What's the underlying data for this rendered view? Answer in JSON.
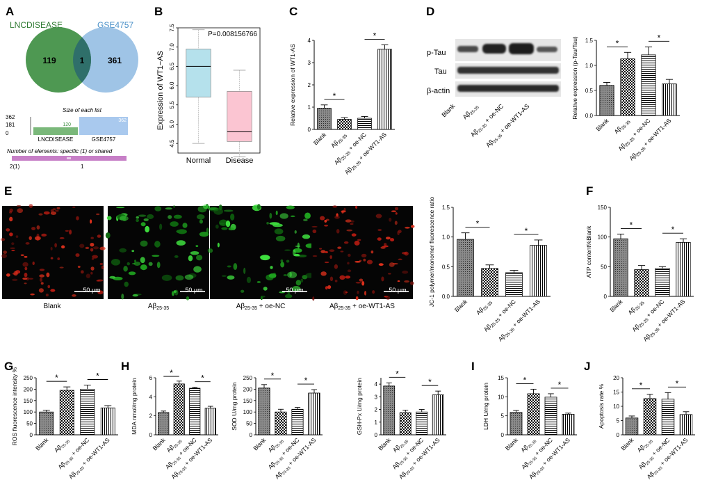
{
  "panel_letters": [
    "A",
    "B",
    "C",
    "D",
    "E",
    "F",
    "G",
    "H",
    "I",
    "J"
  ],
  "venn": {
    "left_label": "LNCDISEASE",
    "right_label": "GSE4757",
    "left_only": "119",
    "shared": "1",
    "right_only": "361",
    "left_color": "#3f8f43",
    "right_color": "#9fc4e6"
  },
  "list_size": {
    "title": "Size of each list",
    "ticks": [
      "362",
      "181",
      "0"
    ],
    "bars": [
      {
        "label": "LNCDISEASE",
        "value": "120",
        "color": "#7ab87a"
      },
      {
        "label": "GSE4757",
        "value": "362",
        "color": "#a9c9ee"
      }
    ]
  },
  "shared_elements": {
    "title": "Number of elements: specific (1) or shared",
    "ticks": [
      "2(1)",
      "1"
    ],
    "bar_color": "#c77fc7"
  },
  "panel_e": {
    "micrographs": [
      {
        "label": "Blank",
        "scale": "50 µm",
        "channel": "red"
      },
      {
        "label": "Aβ25-35",
        "scale": "50 µm",
        "channel": "green"
      },
      {
        "label": "Aβ25-35 + oe-NC",
        "scale": "50 µm",
        "channel": "green"
      },
      {
        "label": "Aβ25-35 + oe-WT1-AS",
        "scale": "50 µm",
        "channel": "red"
      }
    ]
  },
  "western_blot": {
    "rows": [
      "p-Tau",
      "Tau",
      "β-actin"
    ]
  },
  "chart_data": [
    {
      "id": "B",
      "type": "boxplot",
      "ylabel": "Expression of WT1−AS",
      "ylim": [
        4.25,
        7.5
      ],
      "yticks": [
        4.5,
        5.0,
        5.5,
        6.0,
        6.5,
        7.0,
        7.5
      ],
      "annotation": "P=0.008156766",
      "categories": [
        "Normal",
        "Disease"
      ],
      "boxes": [
        {
          "name": "Normal",
          "min": 4.5,
          "q1": 5.7,
          "median": 6.5,
          "q3": 6.95,
          "max": 7.45,
          "color": "#b5e1ec"
        },
        {
          "name": "Disease",
          "min": 4.15,
          "q1": 4.55,
          "median": 4.8,
          "q3": 5.85,
          "max": 6.4,
          "color": "#fbc5d2"
        }
      ]
    },
    {
      "id": "C",
      "type": "bar",
      "ylabel": "Relative expression of WT1-AS",
      "ylim": [
        0,
        4
      ],
      "yticks": [
        0,
        1,
        2,
        3,
        4
      ],
      "categories": [
        "Blank",
        "Aβ25-35",
        "Aβ25-35 + oe-NC",
        "Aβ25-35 + oe-WT1-AS"
      ],
      "values": [
        0.95,
        0.45,
        0.5,
        3.6
      ],
      "errors": [
        0.15,
        0.08,
        0.08,
        0.2
      ],
      "significance": [
        [
          0,
          1
        ],
        [
          2,
          3
        ]
      ]
    },
    {
      "id": "D",
      "type": "bar",
      "ylabel": "Relative expression (p-Tau/Tau)",
      "ylim": [
        0,
        1.5
      ],
      "yticks": [
        0.0,
        0.5,
        1.0,
        1.5
      ],
      "categories": [
        "Blank",
        "Aβ25-35",
        "Aβ25-35 + oe-NC",
        "Aβ25-35 + oe-WT1-AS"
      ],
      "values": [
        0.6,
        1.13,
        1.21,
        0.63
      ],
      "errors": [
        0.06,
        0.13,
        0.16,
        0.09
      ],
      "significance": [
        [
          0,
          1
        ],
        [
          2,
          3
        ]
      ]
    },
    {
      "id": "E",
      "type": "bar",
      "ylabel": "JC-1 polymer/monomer fluorescence ratio",
      "ylim": [
        0,
        1.5
      ],
      "yticks": [
        0.0,
        0.5,
        1.0,
        1.5
      ],
      "categories": [
        "Blank",
        "Aβ25-35",
        "Aβ25-35 + oe-NC",
        "Aβ25-35 + oe-WT1-AS"
      ],
      "values": [
        0.96,
        0.47,
        0.4,
        0.86
      ],
      "errors": [
        0.11,
        0.06,
        0.04,
        0.09
      ],
      "significance": [
        [
          0,
          1
        ],
        [
          2,
          3
        ]
      ]
    },
    {
      "id": "F",
      "type": "bar",
      "ylabel": "ATP content%Blank",
      "ylim": [
        0,
        150
      ],
      "yticks": [
        0,
        50,
        100,
        150
      ],
      "categories": [
        "Blank",
        "Aβ25-35",
        "Aβ25-35 + oe-NC",
        "Aβ25-35 + oe-WT1-AS"
      ],
      "values": [
        97,
        45,
        47,
        91
      ],
      "errors": [
        8,
        7,
        3,
        6
      ],
      "significance": [
        [
          0,
          1
        ],
        [
          2,
          3
        ]
      ]
    },
    {
      "id": "G",
      "type": "bar",
      "ylabel": "ROS fluorescence intensity %",
      "ylim": [
        0,
        250
      ],
      "yticks": [
        0,
        50,
        100,
        150,
        200,
        250
      ],
      "categories": [
        "Blank",
        "Aβ25-35",
        "Aβ25-35 + oe-NC",
        "Aβ25-35 + oe-WT1-AS"
      ],
      "values": [
        100,
        195,
        200,
        118
      ],
      "errors": [
        8,
        15,
        18,
        10
      ],
      "significance": [
        [
          0,
          1
        ],
        [
          2,
          3
        ]
      ]
    },
    {
      "id": "H1",
      "type": "bar",
      "ylabel": "MDA nmol/mg protein",
      "ylim": [
        0,
        6
      ],
      "yticks": [
        0,
        2,
        4,
        6
      ],
      "categories": [
        "Blank",
        "Aβ25-35",
        "Aβ25-35 + oe-NC",
        "Aβ25-35 + oe-WT1-AS"
      ],
      "values": [
        2.35,
        5.35,
        4.9,
        2.8
      ],
      "errors": [
        0.15,
        0.3,
        0.1,
        0.2
      ],
      "significance": [
        [
          0,
          1
        ],
        [
          2,
          3
        ]
      ]
    },
    {
      "id": "H2",
      "type": "bar",
      "ylabel": "SOD U/mg protein",
      "ylim": [
        0,
        250
      ],
      "yticks": [
        0,
        50,
        100,
        150,
        200,
        250
      ],
      "categories": [
        "Blank",
        "Aβ25-35",
        "Aβ25-35 + oe-NC",
        "Aβ25-35 + oe-WT1-AS"
      ],
      "values": [
        205,
        100,
        112,
        183
      ],
      "errors": [
        15,
        12,
        8,
        15
      ],
      "significance": [
        [
          0,
          1
        ],
        [
          2,
          3
        ]
      ]
    },
    {
      "id": "H3",
      "type": "bar",
      "ylabel": "GSH-Px U/mg protein",
      "ylim": [
        0,
        4.5
      ],
      "yticks": [
        0,
        1,
        2,
        3,
        4
      ],
      "categories": [
        "Blank",
        "Aβ25-35",
        "Aβ25-35 + oe-NC",
        "Aβ25-35 + oe-WT1-AS"
      ],
      "values": [
        3.85,
        1.75,
        1.8,
        3.15
      ],
      "errors": [
        0.25,
        0.2,
        0.2,
        0.3
      ],
      "significance": [
        [
          0,
          1
        ],
        [
          2,
          3
        ]
      ]
    },
    {
      "id": "I",
      "type": "bar",
      "ylabel": "LDH U/mg protein",
      "ylim": [
        0,
        15
      ],
      "yticks": [
        0,
        5,
        10,
        15
      ],
      "categories": [
        "Blank",
        "Aβ25-35",
        "Aβ25-35 + oe-NC",
        "Aβ25-35 + oe-WT1-AS"
      ],
      "values": [
        5.9,
        10.8,
        9.9,
        5.4
      ],
      "errors": [
        0.5,
        1.2,
        0.9,
        0.3
      ],
      "significance": [
        [
          0,
          1
        ],
        [
          2,
          3
        ]
      ]
    },
    {
      "id": "J",
      "type": "bar",
      "ylabel": "Apoptosis rate %",
      "ylim": [
        0,
        20
      ],
      "yticks": [
        0,
        5,
        10,
        15,
        20
      ],
      "categories": [
        "Blank",
        "Aβ25-35",
        "Aβ25-35 + oe-NC",
        "Aβ25-35 + oe-WT1-AS"
      ],
      "values": [
        5.9,
        12.7,
        12.5,
        7.1
      ],
      "errors": [
        0.7,
        1.5,
        2.3,
        1.0
      ],
      "significance": [
        [
          0,
          1
        ],
        [
          2,
          3
        ]
      ]
    }
  ]
}
